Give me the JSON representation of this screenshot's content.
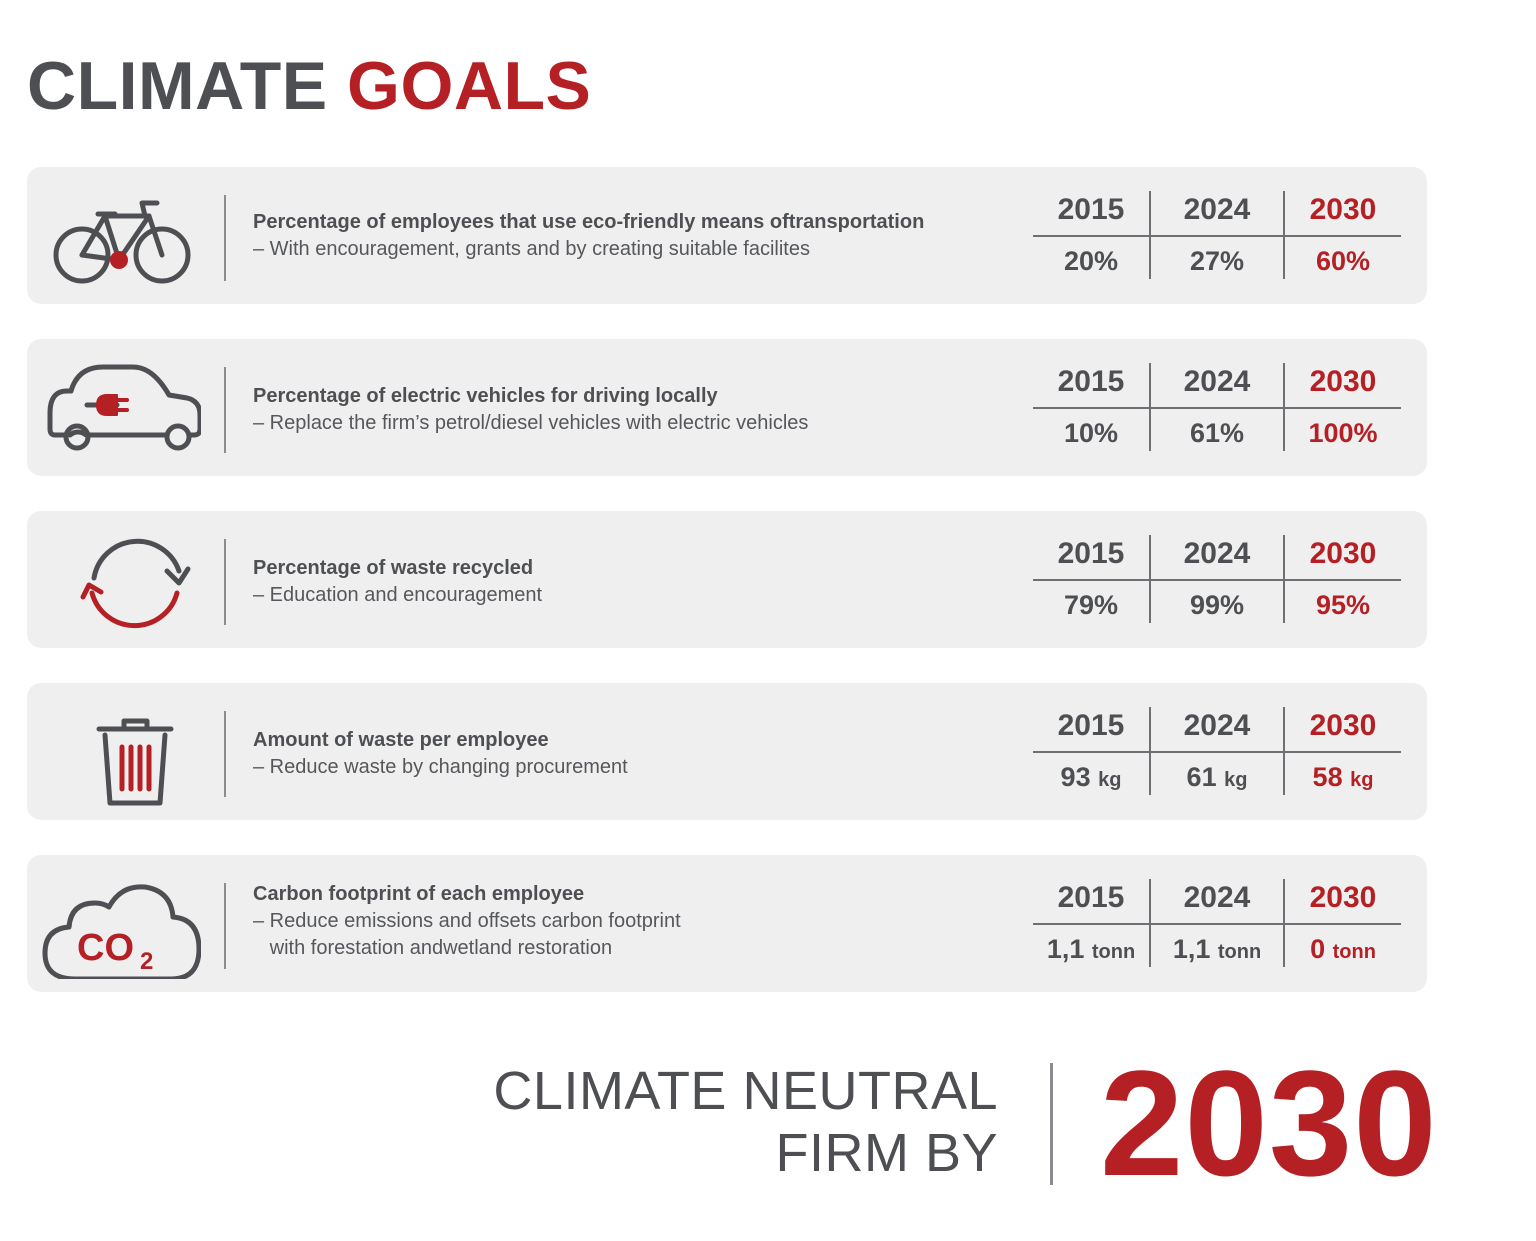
{
  "title": {
    "part1": "CLIMATE",
    "part2": "GOALS"
  },
  "colors": {
    "accent": "#b52025",
    "text": "#4d4f53",
    "card": "#efeff0"
  },
  "goals": [
    {
      "icon": "bicycle-icon",
      "heading": "Percentage of employees that use eco-friendly means oftransportation",
      "sub1": "– With encouragement, grants and by creating suitable facilites",
      "sub2": "",
      "years": [
        "2015",
        "2024",
        "2030"
      ],
      "values": [
        "20%",
        "27%",
        "60%"
      ],
      "units": [
        "",
        "",
        ""
      ]
    },
    {
      "icon": "electric-car-icon",
      "heading": "Percentage of electric vehicles for driving locally",
      "sub1": "– Replace the firm’s petrol/diesel vehicles with electric vehicles",
      "sub2": "",
      "years": [
        "2015",
        "2024",
        "2030"
      ],
      "values": [
        "10%",
        "61%",
        "100%"
      ],
      "units": [
        "",
        "",
        ""
      ]
    },
    {
      "icon": "recycle-icon",
      "heading": "Percentage of waste recycled",
      "sub1": "– Education and encouragement",
      "sub2": "",
      "years": [
        "2015",
        "2024",
        "2030"
      ],
      "values": [
        "79%",
        "99%",
        "95%"
      ],
      "units": [
        "",
        "",
        ""
      ]
    },
    {
      "icon": "trash-can-icon",
      "heading": "Amount of waste per employee",
      "sub1": "– Reduce waste by changing procurement",
      "sub2": "",
      "years": [
        "2015",
        "2024",
        "2030"
      ],
      "values": [
        "93",
        "61",
        "58"
      ],
      "units": [
        "kg",
        "kg",
        "kg"
      ]
    },
    {
      "icon": "co2-cloud-icon",
      "heading": "Carbon footprint of each employee",
      "sub1": "– Reduce emissions and offsets carbon footprint",
      "sub2": "   with forestation andwetland restoration",
      "years": [
        "2015",
        "2024",
        "2030"
      ],
      "values": [
        "1,1",
        "1,1",
        "0"
      ],
      "units": [
        "tonn",
        "tonn",
        "tonn"
      ]
    }
  ],
  "icon_text": {
    "co2_main": "CO",
    "co2_sub": "2"
  },
  "footer": {
    "line1": "CLIMATE NEUTRAL",
    "line2": "FIRM BY",
    "year": "2030"
  }
}
